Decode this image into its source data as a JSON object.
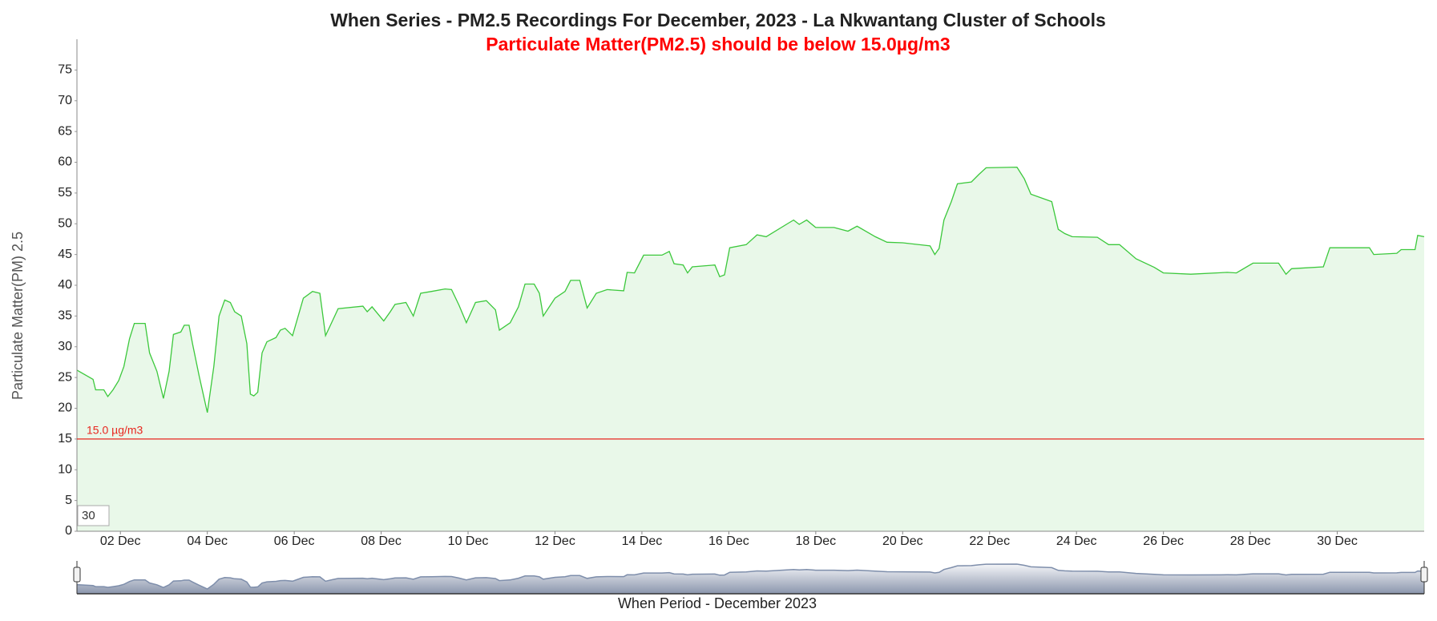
{
  "chart_data": {
    "type": "area",
    "title": "When Series - PM2.5 Recordings For December, 2023 - La Nkwantang Cluster of Schools",
    "subtitle": "Particulate Matter(PM2.5) should be below 15.0µg/m3",
    "y_label": "Particulate Matter(PM) 2.5",
    "x_label": "When Period - December 2023",
    "range_input": "30",
    "threshold": {
      "value": 15,
      "label": "15.0 µg/m3",
      "color": "#e8261e"
    },
    "xlim": [
      1,
      32
    ],
    "xticks": [
      {
        "value": 2,
        "label": "02 Dec"
      },
      {
        "value": 4,
        "label": "04 Dec"
      },
      {
        "value": 6,
        "label": "06 Dec"
      },
      {
        "value": 8,
        "label": "08 Dec"
      },
      {
        "value": 10,
        "label": "10 Dec"
      },
      {
        "value": 12,
        "label": "12 Dec"
      },
      {
        "value": 14,
        "label": "14 Dec"
      },
      {
        "value": 16,
        "label": "16 Dec"
      },
      {
        "value": 18,
        "label": "18 Dec"
      },
      {
        "value": 20,
        "label": "20 Dec"
      },
      {
        "value": 22,
        "label": "22 Dec"
      },
      {
        "value": 24,
        "label": "24 Dec"
      },
      {
        "value": 26,
        "label": "26 Dec"
      },
      {
        "value": 28,
        "label": "28 Dec"
      },
      {
        "value": 30,
        "label": "30 Dec"
      }
    ],
    "ylim": [
      0,
      80
    ],
    "yticks": [
      0,
      5,
      10,
      15,
      20,
      25,
      30,
      35,
      40,
      45,
      50,
      55,
      60,
      65,
      70,
      75
    ],
    "grid": false,
    "color": "#3cc83c",
    "fill": "#e9f8e9",
    "x": [
      1.0,
      1.37,
      1.43,
      1.62,
      1.71,
      1.83,
      1.96,
      2.08,
      2.21,
      2.32,
      2.57,
      2.67,
      2.84,
      2.99,
      3.12,
      3.22,
      3.39,
      3.47,
      3.58,
      3.66,
      3.81,
      4.0,
      4.15,
      4.27,
      4.4,
      4.53,
      4.63,
      4.78,
      4.91,
      4.99,
      5.07,
      5.16,
      5.26,
      5.37,
      5.58,
      5.68,
      5.79,
      5.96,
      6.21,
      6.42,
      6.59,
      6.72,
      6.88,
      7.01,
      7.58,
      7.68,
      7.79,
      8.06,
      8.21,
      8.32,
      8.57,
      8.74,
      8.91,
      9.16,
      9.47,
      9.62,
      9.79,
      9.96,
      10.17,
      10.42,
      10.63,
      10.72,
      10.97,
      11.16,
      11.31,
      11.52,
      11.64,
      11.73,
      12.0,
      12.23,
      12.36,
      12.57,
      12.74,
      12.95,
      13.2,
      13.58,
      13.66,
      13.83,
      14.04,
      14.46,
      14.63,
      14.74,
      14.95,
      15.05,
      15.16,
      15.68,
      15.79,
      15.9,
      16.02,
      16.4,
      16.65,
      16.86,
      17.37,
      17.49,
      17.62,
      17.79,
      18.0,
      18.42,
      18.74,
      18.95,
      19.37,
      19.64,
      20.0,
      20.63,
      20.74,
      20.84,
      20.95,
      21.12,
      21.26,
      21.58,
      21.75,
      21.92,
      22.63,
      22.8,
      22.95,
      23.43,
      23.58,
      23.73,
      23.9,
      24.48,
      24.74,
      24.99,
      25.37,
      25.79,
      26.0,
      26.63,
      27.47,
      27.68,
      28.06,
      28.65,
      28.82,
      28.95,
      29.68,
      29.83,
      30.74,
      30.84,
      31.37,
      31.47,
      31.79,
      31.85,
      32.0
    ],
    "values": [
      26.2,
      24.7,
      23,
      23,
      21.9,
      23,
      24.5,
      26.8,
      31.3,
      33.8,
      33.8,
      29,
      26,
      21.6,
      26,
      32,
      32.4,
      33.5,
      33.5,
      30.5,
      25.3,
      19.3,
      26.8,
      35,
      37.6,
      37.2,
      35.7,
      35,
      30.5,
      22.3,
      22,
      22.6,
      29,
      30.8,
      31.5,
      32.7,
      33,
      31.8,
      37.9,
      39,
      38.7,
      31.8,
      34.2,
      36.2,
      36.6,
      35.7,
      36.5,
      34.2,
      35.7,
      36.9,
      37.2,
      35,
      38.7,
      39,
      39.4,
      39.3,
      36.8,
      33.9,
      37.2,
      37.5,
      36,
      32.7,
      33.9,
      36.5,
      40.2,
      40.2,
      38.7,
      35,
      37.9,
      39,
      40.8,
      40.8,
      36.3,
      38.7,
      39.3,
      39.1,
      42.1,
      42,
      44.9,
      44.9,
      45.5,
      43.5,
      43.3,
      42,
      43,
      43.3,
      41.4,
      41.7,
      46.1,
      46.6,
      48.2,
      47.9,
      50.1,
      50.6,
      49.9,
      50.6,
      49.4,
      49.4,
      48.8,
      49.6,
      47.9,
      47,
      46.9,
      46.4,
      45,
      46,
      50.6,
      53.6,
      56.5,
      56.8,
      58,
      59.1,
      59.2,
      57.3,
      54.8,
      53.6,
      49.1,
      48.4,
      47.9,
      47.8,
      46.6,
      46.6,
      44.3,
      42.9,
      42,
      41.8,
      42.1,
      42,
      43.6,
      43.6,
      41.8,
      42.7,
      43,
      46.1,
      46.1,
      45,
      45.2,
      45.8,
      45.8,
      48.1,
      47.9
    ]
  }
}
